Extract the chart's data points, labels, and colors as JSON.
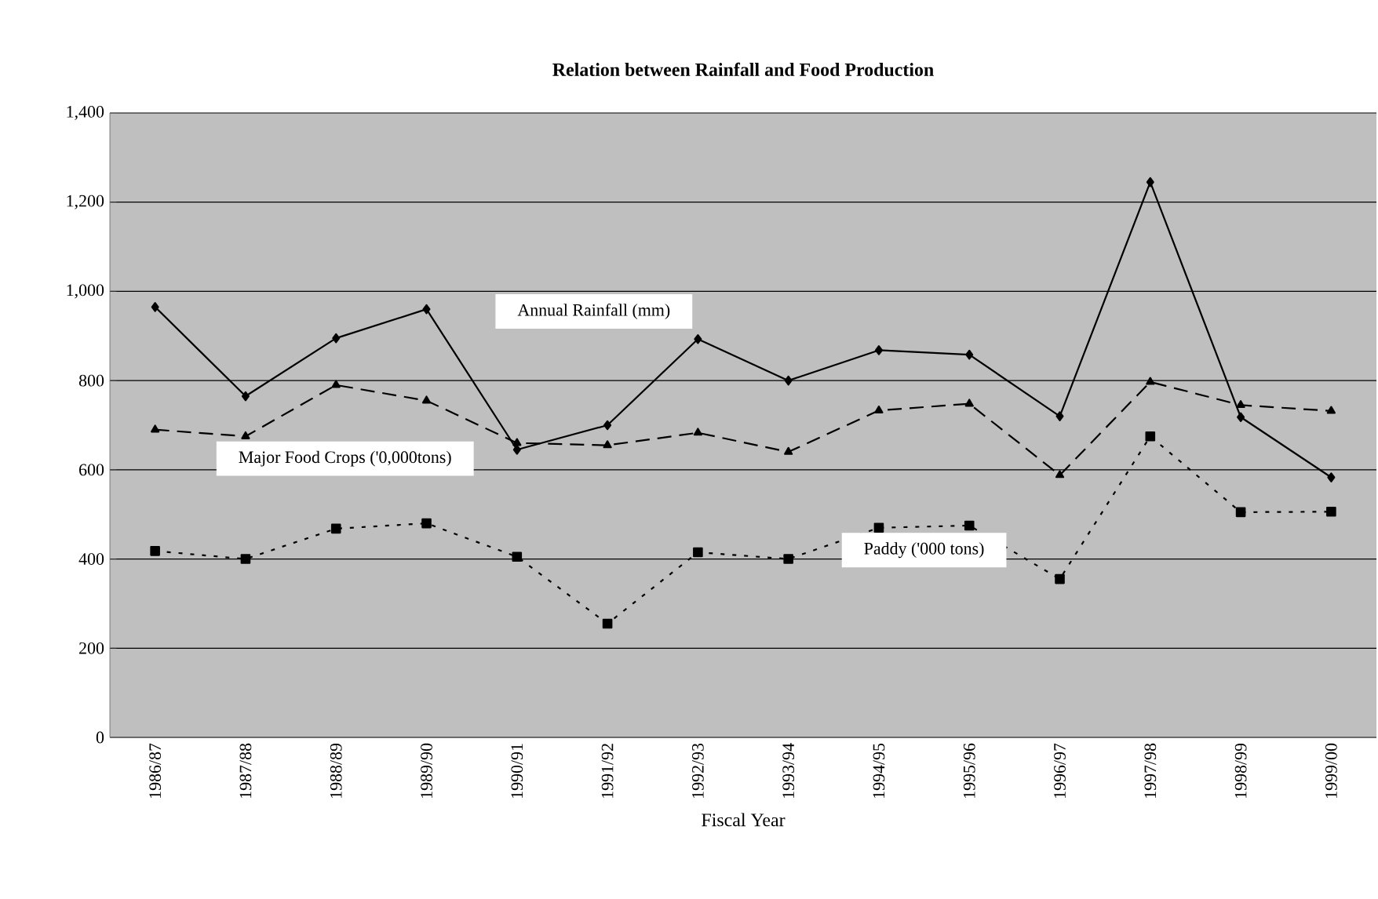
{
  "chart_data": {
    "type": "line",
    "title": "Relation between Rainfall and Food Production",
    "xlabel": "Fiscal Year",
    "categories": [
      "1986/87",
      "1987/88",
      "1988/89",
      "1989/90",
      "1990/91",
      "1991/92",
      "1992/93",
      "1993/94",
      "1994/95",
      "1995/96",
      "1996/97",
      "1997/98",
      "1998/99",
      "1999/00"
    ],
    "series": [
      {
        "name": "Annual Rainfall (mm)",
        "color": "#000000",
        "marker": "diamond",
        "line_style": "solid",
        "values": [
          965,
          765,
          895,
          960,
          645,
          700,
          893,
          800,
          868,
          858,
          720,
          1245,
          718,
          583
        ]
      },
      {
        "name": "Major Food Crops ('0,000tons)",
        "color": "#000000",
        "marker": "triangle",
        "line_style": "dashed",
        "values": [
          690,
          675,
          790,
          755,
          660,
          655,
          683,
          640,
          733,
          748,
          588,
          797,
          745,
          732
        ]
      },
      {
        "name": "Paddy  ('000 tons)",
        "color": "#000000",
        "marker": "square",
        "line_style": "dotted",
        "values": [
          418,
          400,
          468,
          480,
          405,
          255,
          415,
          400,
          470,
          475,
          355,
          675,
          505,
          506
        ]
      }
    ],
    "ylim": [
      0,
      1400
    ],
    "yticks": [
      0,
      200,
      400,
      600,
      800,
      {
        "value": 1000,
        "label": "1,000"
      },
      {
        "value": 1200,
        "label": "1,200"
      },
      {
        "value": 1400,
        "label": "1,400"
      }
    ],
    "grid": "y"
  }
}
